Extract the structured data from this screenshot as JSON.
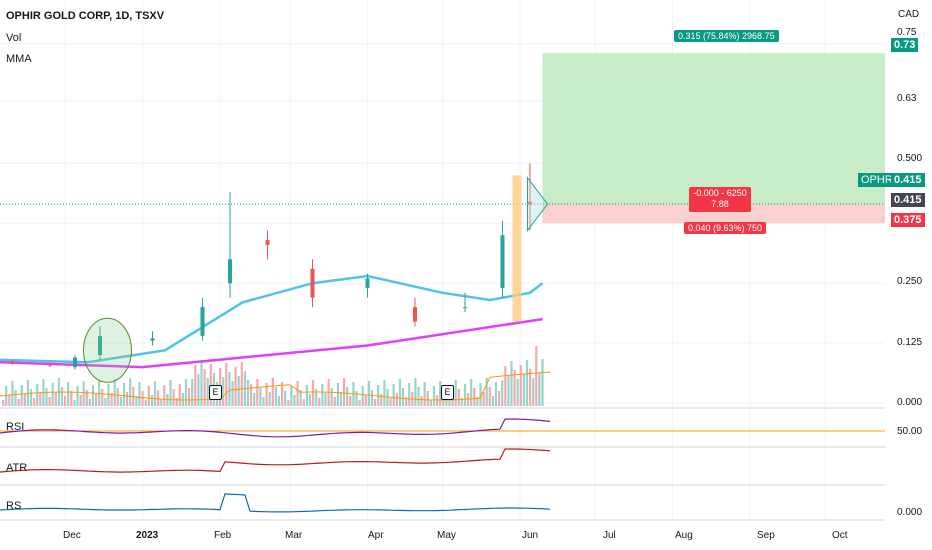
{
  "header": {
    "title": "OPHIR GOLD CORP, 1D, TSXV",
    "vol_label": "Vol",
    "mma_label": "MMA"
  },
  "currency": "CAD",
  "price_axis": {
    "ticks": [
      "0.75",
      "0.63",
      "0.500",
      "0.250",
      "0.125",
      "0.000"
    ],
    "target_tag": "0.73",
    "ticker_label": "OPHR",
    "ticker_price": "0.415",
    "current_tag": "0.415",
    "stop_tag": "0.375"
  },
  "position_tool": {
    "profit_label": "0.315 (75.84%) 2968.75",
    "center_line1": "-0.000 - 6250",
    "center_line2": "7.88",
    "loss_label": "0.040 (9.63%) 750"
  },
  "earnings_marks": [
    "E",
    "E"
  ],
  "panes": {
    "rsi": {
      "label": "RSI",
      "value": "50.00"
    },
    "atr": {
      "label": "ATR"
    },
    "rs": {
      "label": "RS",
      "value": "0.000"
    }
  },
  "time_axis": [
    "Dec",
    "2023",
    "Feb",
    "Mar",
    "Apr",
    "May",
    "Jun",
    "Jul",
    "Aug",
    "Sep",
    "Oct"
  ],
  "colors": {
    "up": "#26a69a",
    "down": "#ef5350",
    "ma_short": "#4fc3e8",
    "ma_long": "#e040fb",
    "volume_ma": "#ff9800",
    "rsi": "#7b1fa2",
    "atr": "#b71c1c",
    "rs": "#1565c0",
    "profit_zone": "#c8ecc8",
    "loss_zone": "#fbd0d0",
    "highlight": "#ffcc80"
  },
  "chart_data": {
    "type": "candlestick",
    "title": "OPHIR GOLD CORP, 1D, TSXV",
    "x_range": [
      "2022-11-05",
      "2023-10-25"
    ],
    "ylim": [
      0,
      0.77
    ],
    "grid": true,
    "series": [
      {
        "name": "MMA",
        "values_by_date": [
          [
            "2022-11-05",
            0.09
          ],
          [
            "2022-12-10",
            0.085
          ],
          [
            "2023-01-10",
            0.11
          ],
          [
            "2023-02-10",
            0.21
          ],
          [
            "2023-03-10",
            0.25
          ],
          [
            "2023-04-01",
            0.265
          ],
          [
            "2023-05-01",
            0.23
          ],
          [
            "2023-05-20",
            0.215
          ],
          [
            "2023-06-05",
            0.23
          ],
          [
            "2023-06-10",
            0.25
          ]
        ]
      },
      {
        "name": "MMA",
        "values_by_date": [
          [
            "2022-11-05",
            0.085
          ],
          [
            "2023-01-01",
            0.075
          ],
          [
            "2023-02-10",
            0.095
          ],
          [
            "2023-04-01",
            0.12
          ],
          [
            "2023-06-10",
            0.175
          ]
        ]
      }
    ],
    "candles_ohlc": [
      [
        "2022-11-10",
        0.085,
        0.09,
        0.08,
        0.082
      ],
      [
        "2022-11-25",
        0.08,
        0.085,
        0.075,
        0.078
      ],
      [
        "2022-12-05",
        0.075,
        0.1,
        0.07,
        0.095
      ],
      [
        "2022-12-15",
        0.1,
        0.16,
        0.09,
        0.14
      ],
      [
        "2023-01-05",
        0.13,
        0.15,
        0.12,
        0.135
      ],
      [
        "2023-01-25",
        0.14,
        0.22,
        0.13,
        0.2
      ],
      [
        "2023-02-05",
        0.25,
        0.44,
        0.22,
        0.3
      ],
      [
        "2023-02-20",
        0.34,
        0.36,
        0.3,
        0.33
      ],
      [
        "2023-03-10",
        0.28,
        0.3,
        0.2,
        0.22
      ],
      [
        "2023-04-01",
        0.24,
        0.27,
        0.22,
        0.26
      ],
      [
        "2023-04-20",
        0.2,
        0.22,
        0.16,
        0.17
      ],
      [
        "2023-05-10",
        0.2,
        0.23,
        0.19,
        0.2
      ],
      [
        "2023-05-25",
        0.24,
        0.38,
        0.22,
        0.35
      ],
      [
        "2023-06-05",
        0.42,
        0.5,
        0.36,
        0.415
      ]
    ],
    "position": {
      "entry": 0.415,
      "target": 0.73,
      "stop": 0.375
    },
    "last_price": 0.415
  }
}
